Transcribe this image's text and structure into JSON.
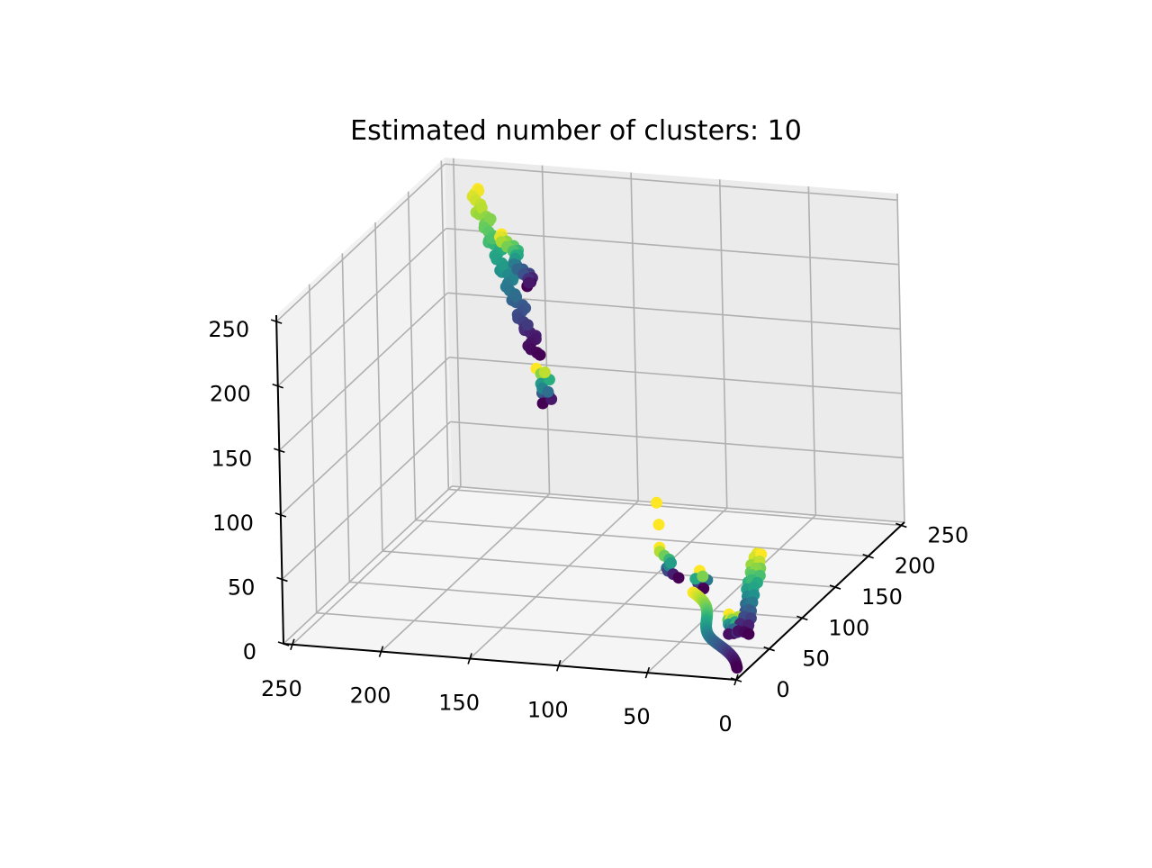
{
  "chart_data": {
    "type": "scatter",
    "projection": "3d",
    "title": "Estimated number of clusters: 10",
    "xlabel": "",
    "ylabel": "",
    "zlabel": "",
    "xlim": [
      0,
      255
    ],
    "ylim": [
      0,
      255
    ],
    "zlim": [
      0,
      255
    ],
    "x_ticks": [
      "0",
      "50",
      "100",
      "150",
      "200",
      "250"
    ],
    "y_ticks": [
      "0",
      "50",
      "100",
      "150",
      "200",
      "250"
    ],
    "z_ticks": [
      "0",
      "50",
      "100",
      "150",
      "200",
      "250"
    ],
    "grid": true,
    "colormap": "viridis",
    "cluster_count": 10,
    "clusters": [
      {
        "start": [
          230,
          230,
          245
        ],
        "end": [
          175,
          175,
          150
        ],
        "n": 60
      },
      {
        "start": [
          200,
          195,
          230
        ],
        "end": [
          180,
          180,
          200
        ],
        "n": 25
      },
      {
        "start": [
          165,
          155,
          150
        ],
        "end": [
          160,
          150,
          125
        ],
        "n": 12
      },
      {
        "start": [
          72,
          70,
          95
        ],
        "end": [
          72,
          70,
          95
        ],
        "n": 1
      },
      {
        "start": [
          68,
          66,
          82
        ],
        "end": [
          68,
          66,
          82
        ],
        "n": 1
      },
      {
        "start": [
          60,
          55,
          70
        ],
        "end": [
          52,
          47,
          50
        ],
        "n": 10
      },
      {
        "start": [
          42,
          60,
          50
        ],
        "end": [
          40,
          58,
          40
        ],
        "n": 6
      },
      {
        "start": [
          8,
          58,
          70
        ],
        "end": [
          3,
          20,
          25
        ],
        "n": 35
      },
      {
        "start": [
          42,
          48,
          40
        ],
        "end": [
          5,
          8,
          5
        ],
        "n": 55
      },
      {
        "start": [
          12,
          28,
          35
        ],
        "end": [
          8,
          20,
          25
        ],
        "n": 18
      }
    ]
  }
}
